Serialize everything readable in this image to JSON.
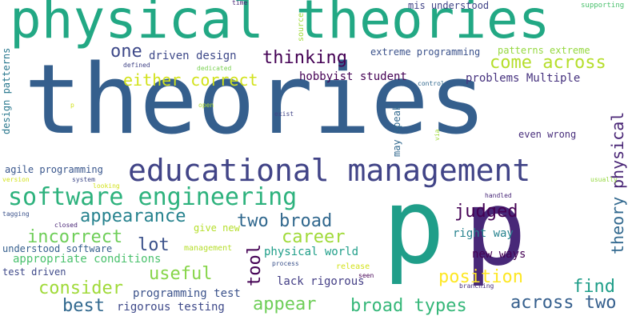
{
  "words": [
    {
      "text": "theories",
      "color": "#355f8d",
      "size": 120
    },
    {
      "text": "physical theories",
      "color": "#22a884",
      "size": 66
    },
    {
      "text": "educational management",
      "color": "#414487",
      "size": 38
    },
    {
      "text": "software engineering",
      "color": "#2db27d",
      "size": 30
    },
    {
      "text": "p",
      "color": "#482878",
      "size": 130
    },
    {
      "text": "p",
      "color": "#1f9e89",
      "size": 130
    },
    {
      "text": "thinking",
      "color": "#440154",
      "size": 22
    },
    {
      "text": "one",
      "color": "#3e4989",
      "size": 22
    },
    {
      "text": "either correct",
      "color": "#d2e21b",
      "size": 20
    },
    {
      "text": "come across",
      "color": "#b5de2b",
      "size": 22
    },
    {
      "text": "physical",
      "color": "#482475",
      "size": 20,
      "rotate": true
    },
    {
      "text": "theory",
      "color": "#31688e",
      "size": 20,
      "rotate": true
    },
    {
      "text": "judged",
      "color": "#440154",
      "size": 22
    },
    {
      "text": "two broad",
      "color": "#31688e",
      "size": 22
    },
    {
      "text": "appearance",
      "color": "#26828e",
      "size": 22
    },
    {
      "text": "incorrect",
      "color": "#6ece58",
      "size": 22
    },
    {
      "text": "lot",
      "color": "#3b528b",
      "size": 22
    },
    {
      "text": "career",
      "color": "#a0da39",
      "size": 22
    },
    {
      "text": "tool",
      "color": "#440154",
      "size": 22,
      "rotate": true
    },
    {
      "text": "useful",
      "color": "#86d549",
      "size": 22
    },
    {
      "text": "position",
      "color": "#fde725",
      "size": 22
    },
    {
      "text": "find",
      "color": "#1f9e89",
      "size": 22
    },
    {
      "text": "consider",
      "color": "#a0da39",
      "size": 22
    },
    {
      "text": "appear",
      "color": "#6ece58",
      "size": 22
    },
    {
      "text": "broad types",
      "color": "#35b779",
      "size": 22
    },
    {
      "text": "across two",
      "color": "#355f8d",
      "size": 22
    },
    {
      "text": "best",
      "color": "#31688e",
      "size": 22
    },
    {
      "text": "driven design",
      "color": "#3e4989",
      "size": 14
    },
    {
      "text": "extreme programming",
      "color": "#3b528b",
      "size": 12
    },
    {
      "text": "patterns extreme",
      "color": "#95d840",
      "size": 12
    },
    {
      "text": "hobbyist student",
      "color": "#440154",
      "size": 14
    },
    {
      "text": "problems Multiple",
      "color": "#46327e",
      "size": 14
    },
    {
      "text": "mis understood",
      "color": "#414487",
      "size": 12
    },
    {
      "text": "agile programming",
      "color": "#39568c",
      "size": 12
    },
    {
      "text": "give new",
      "color": "#b5de2b",
      "size": 12
    },
    {
      "text": "understood software",
      "color": "#355f8d",
      "size": 12
    },
    {
      "text": "appropriate conditions",
      "color": "#4ac16d",
      "size": 14
    },
    {
      "text": "physical world",
      "color": "#1f9e89",
      "size": 14
    },
    {
      "text": "right way",
      "color": "#26828e",
      "size": 14
    },
    {
      "text": "new ways",
      "color": "#440154",
      "size": 14
    },
    {
      "text": "test driven",
      "color": "#3e4989",
      "size": 12
    },
    {
      "text": "programming test",
      "color": "#3b528b",
      "size": 14
    },
    {
      "text": "lack rigorous",
      "color": "#433e85",
      "size": 14
    },
    {
      "text": "rigorous testing",
      "color": "#3e4989",
      "size": 14
    },
    {
      "text": "even wrong",
      "color": "#472d7b",
      "size": 12
    },
    {
      "text": "may speak",
      "color": "#31688e",
      "size": 12,
      "rotate": true
    },
    {
      "text": "design patterns",
      "color": "#2a788e",
      "size": 12,
      "rotate": true
    },
    {
      "text": "source",
      "color": "#a0da39",
      "size": 10,
      "rotate": true
    },
    {
      "text": "management",
      "color": "#b5de2b",
      "size": 10
    },
    {
      "text": "supporting",
      "color": "#4ac16d",
      "size": 9
    },
    {
      "text": "time",
      "color": "#482475",
      "size": 8
    },
    {
      "text": "defined",
      "color": "#414487",
      "size": 8
    },
    {
      "text": "dedicated",
      "color": "#7ad151",
      "size": 8
    },
    {
      "text": "control",
      "color": "#31688e",
      "size": 8
    },
    {
      "text": "exist",
      "color": "#414487",
      "size": 8
    },
    {
      "text": "open",
      "color": "#addc30",
      "size": 8
    },
    {
      "text": "version",
      "color": "#d2e21b",
      "size": 8
    },
    {
      "text": "system",
      "color": "#3e4989",
      "size": 8
    },
    {
      "text": "looking",
      "color": "#d2e21b",
      "size": 8
    },
    {
      "text": "tagging",
      "color": "#3b528b",
      "size": 8
    },
    {
      "text": "closed",
      "color": "#482475",
      "size": 8
    },
    {
      "text": "handled",
      "color": "#482878",
      "size": 8
    },
    {
      "text": "usually",
      "color": "#95d840",
      "size": 8
    },
    {
      "text": "process",
      "color": "#3b528b",
      "size": 8
    },
    {
      "text": "release",
      "color": "#d2e21b",
      "size": 10
    },
    {
      "text": "seen",
      "color": "#440154",
      "size": 8
    },
    {
      "text": "branching",
      "color": "#472d7b",
      "size": 8
    },
    {
      "text": "via",
      "color": "#a0da39",
      "size": 8,
      "rotate": true
    },
    {
      "text": "p",
      "color": "#d2e21b",
      "size": 8
    }
  ]
}
